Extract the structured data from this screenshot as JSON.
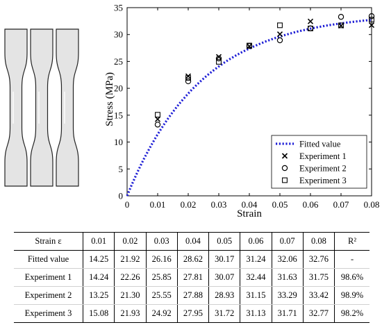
{
  "specimen_photo": {
    "count": 3,
    "colors": {
      "specimen": "#e4e4e4",
      "outline": "#222222"
    }
  },
  "chart_data": {
    "type": "scatter",
    "title": "",
    "xlabel": "Strain",
    "ylabel": "Stress (MPa)",
    "xlim": [
      0,
      0.08
    ],
    "ylim": [
      0,
      35
    ],
    "xticks": [
      0,
      0.01,
      0.02,
      0.03,
      0.04,
      0.05,
      0.06,
      0.07,
      0.08
    ],
    "yticks": [
      0,
      5,
      10,
      15,
      20,
      25,
      30,
      35
    ],
    "xtick_labels": [
      "0",
      "0.01",
      "0.02",
      "0.03",
      "0.04",
      "0.05",
      "0.06",
      "0.07",
      "0.08"
    ],
    "ytick_labels": [
      "0",
      "5",
      "10",
      "15",
      "20",
      "25",
      "30",
      "35"
    ],
    "grid": false,
    "legend_position": "bottom-right",
    "x": [
      0.01,
      0.02,
      0.03,
      0.04,
      0.05,
      0.06,
      0.07,
      0.08
    ],
    "fit_curve": {
      "amplitude": 34.0,
      "rate": 41.0,
      "color": "#1f1fd6"
    },
    "series": [
      {
        "name": "Fitted value",
        "style": "dotted-line",
        "color": "#1f1fd6",
        "values": [
          14.25,
          21.92,
          26.16,
          28.62,
          30.17,
          31.24,
          32.06,
          32.76
        ]
      },
      {
        "name": "Experiment 1",
        "style": "cross",
        "color": "#000000",
        "values": [
          14.24,
          22.26,
          25.85,
          27.81,
          30.07,
          32.44,
          31.63,
          31.75
        ]
      },
      {
        "name": "Experiment 2",
        "style": "circle",
        "color": "#000000",
        "values": [
          13.25,
          21.3,
          25.55,
          27.88,
          28.93,
          31.15,
          33.29,
          33.42
        ]
      },
      {
        "name": "Experiment 3",
        "style": "square",
        "color": "#000000",
        "values": [
          15.08,
          21.93,
          24.92,
          27.95,
          31.72,
          31.13,
          31.71,
          32.77
        ]
      }
    ]
  },
  "table": {
    "header": [
      "Strain ε",
      "0.01",
      "0.02",
      "0.03",
      "0.04",
      "0.05",
      "0.06",
      "0.07",
      "0.08",
      "R²"
    ],
    "rows": [
      [
        "Fitted value",
        "14.25",
        "21.92",
        "26.16",
        "28.62",
        "30.17",
        "31.24",
        "32.06",
        "32.76",
        "-"
      ],
      [
        "Experiment 1",
        "14.24",
        "22.26",
        "25.85",
        "27.81",
        "30.07",
        "32.44",
        "31.63",
        "31.75",
        "98.6%"
      ],
      [
        "Experiment 2",
        "13.25",
        "21.30",
        "25.55",
        "27.88",
        "28.93",
        "31.15",
        "33.29",
        "33.42",
        "98.9%"
      ],
      [
        "Experiment 3",
        "15.08",
        "21.93",
        "24.92",
        "27.95",
        "31.72",
        "31.13",
        "31.71",
        "32.77",
        "98.2%"
      ]
    ]
  }
}
